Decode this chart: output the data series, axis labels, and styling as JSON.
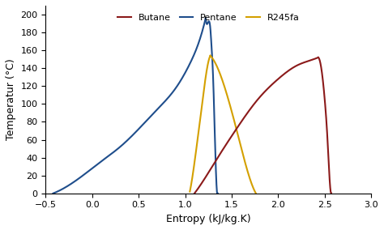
{
  "title": "",
  "xlabel": "Entropy (kJ/kg.K)",
  "ylabel": "Temperatur (°C)",
  "xlim": [
    -0.5,
    3.0
  ],
  "ylim": [
    0,
    210
  ],
  "xticks": [
    -0.5,
    0,
    0.5,
    1.0,
    1.5,
    2.0,
    2.5,
    3.0
  ],
  "yticks": [
    0,
    20,
    40,
    60,
    80,
    100,
    120,
    140,
    160,
    180,
    200
  ],
  "legend_labels": [
    "Butane",
    "Pentane",
    "R245fa"
  ],
  "colors": {
    "butane": "#8B1A1A",
    "pentane": "#1F4E8C",
    "r245fa": "#D4A000"
  },
  "background_color": "#FFFFFF",
  "pentane": {
    "liquid_s": [
      -0.42,
      -0.3,
      -0.1,
      0.1,
      0.3,
      0.5,
      0.7,
      0.9,
      1.05,
      1.15,
      1.22
    ],
    "liquid_T": [
      0,
      6,
      20,
      36,
      52,
      72,
      94,
      118,
      145,
      170,
      196
    ],
    "vapor_s": [
      1.22,
      1.25,
      1.27,
      1.28,
      1.3,
      1.32,
      1.35
    ],
    "vapor_T": [
      196,
      192,
      185,
      170,
      130,
      60,
      0
    ]
  },
  "r245fa": {
    "liquid_s": [
      1.05,
      1.08,
      1.12,
      1.17,
      1.22,
      1.27
    ],
    "liquid_T": [
      2,
      20,
      50,
      90,
      130,
      154
    ],
    "vapor_s": [
      1.27,
      1.35,
      1.45,
      1.58,
      1.7,
      1.76
    ],
    "vapor_T": [
      154,
      140,
      110,
      60,
      15,
      0
    ]
  },
  "butane": {
    "liquid_s": [
      1.1,
      1.2,
      1.35,
      1.55,
      1.78,
      2.0,
      2.2,
      2.38,
      2.43
    ],
    "liquid_T": [
      0,
      15,
      40,
      72,
      105,
      128,
      143,
      150,
      152
    ],
    "vapor_s": [
      2.43,
      2.47,
      2.5,
      2.53,
      2.55,
      2.57
    ],
    "vapor_T": [
      152,
      135,
      105,
      60,
      20,
      0
    ]
  }
}
